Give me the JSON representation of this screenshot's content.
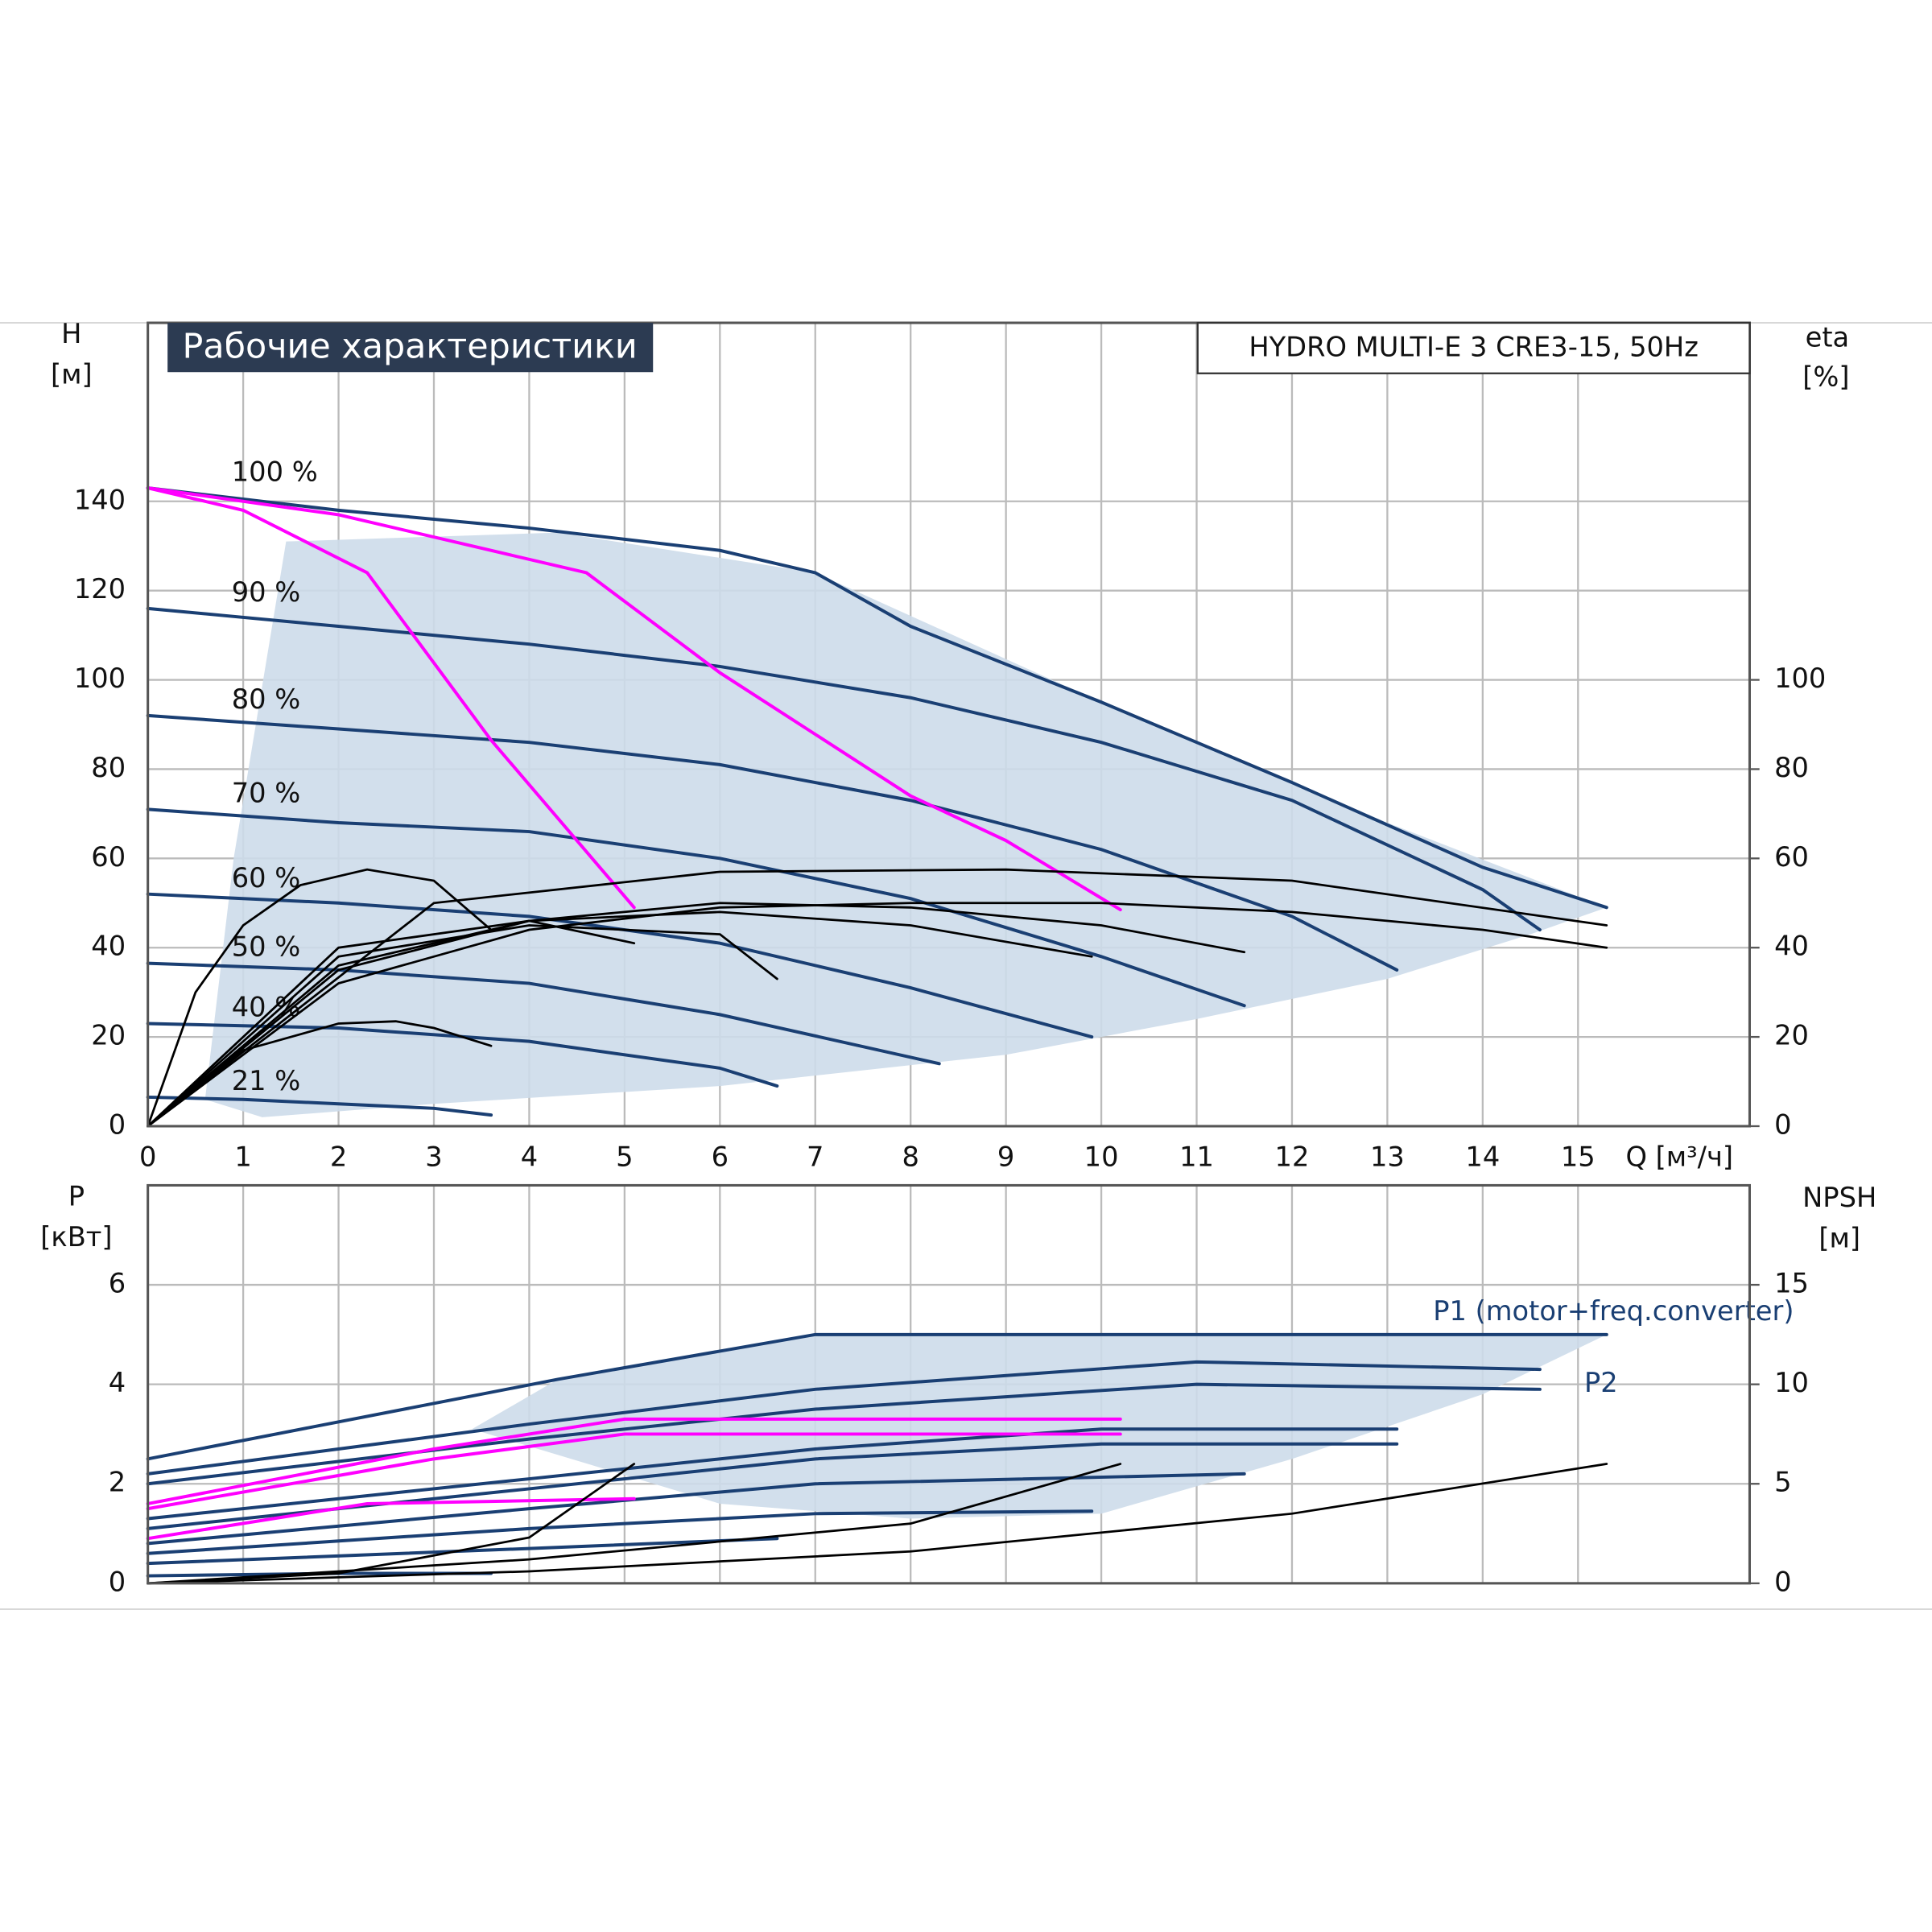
{
  "chart_data": [
    {
      "type": "line",
      "title": "Рабочие характеристики",
      "subtitle": "HYDRO MULTI-E 3 CRE3-15, 50Hz",
      "ylabel": [
        "H",
        "[м]"
      ],
      "y2label": [
        "eta",
        "[%]"
      ],
      "xlabel": "Q [м³/ч]",
      "xlim": [
        0,
        16.8
      ],
      "xticks": [
        0,
        1,
        2,
        3,
        4,
        5,
        6,
        7,
        8,
        9,
        10,
        11,
        12,
        13,
        14,
        15
      ],
      "ylim": [
        0,
        180
      ],
      "yticks": [
        0,
        20,
        40,
        60,
        80,
        100,
        120,
        140
      ],
      "y2lim": [
        0,
        180
      ],
      "y2ticks": [
        0,
        20,
        40,
        60,
        80,
        100
      ],
      "grid": true,
      "series_label_position": "start",
      "envelope": {
        "color": "#cddcea",
        "x": [
          1.45,
          4.3,
          7,
          10,
          13,
          15.3,
          14.5,
          13,
          11,
          9,
          6,
          3,
          1.2,
          0.6,
          0.9
        ],
        "values": [
          131,
          133,
          124,
          95,
          68,
          49,
          43,
          33,
          24,
          16,
          9,
          5,
          2,
          6,
          60
        ]
      },
      "series": [
        {
          "name": "100 %",
          "color": "#1a3f73",
          "x": [
            0,
            2,
            4,
            6,
            7,
            8,
            10,
            12,
            14,
            15.3
          ],
          "values": [
            143,
            138,
            134,
            129,
            124,
            112,
            95,
            77,
            58,
            49
          ]
        },
        {
          "name": "90 %",
          "color": "#1a3f73",
          "x": [
            0,
            2,
            4,
            6,
            8,
            10,
            12,
            14,
            14.6
          ],
          "values": [
            116,
            112,
            108,
            103,
            96,
            86,
            73,
            53,
            44
          ]
        },
        {
          "name": "80 %",
          "color": "#1a3f73",
          "x": [
            0,
            2,
            4,
            6,
            8,
            10,
            12,
            13.1
          ],
          "values": [
            92,
            89,
            86,
            81,
            73,
            62,
            47,
            35
          ]
        },
        {
          "name": "70 %",
          "color": "#1a3f73",
          "x": [
            0,
            2,
            4,
            6,
            8,
            10,
            11.5
          ],
          "values": [
            71,
            68,
            66,
            60,
            51,
            38,
            27
          ]
        },
        {
          "name": "60 %",
          "color": "#1a3f73",
          "x": [
            0,
            2,
            4,
            6,
            8,
            9.9
          ],
          "values": [
            52,
            50,
            47,
            41,
            31,
            20
          ]
        },
        {
          "name": "50 %",
          "color": "#1a3f73",
          "x": [
            0,
            2,
            4,
            6,
            8.3
          ],
          "values": [
            36.5,
            35,
            32,
            25,
            14
          ]
        },
        {
          "name": "40 %",
          "color": "#1a3f73",
          "x": [
            0,
            2,
            4,
            6,
            6.6
          ],
          "values": [
            23,
            22,
            19,
            13,
            9
          ]
        },
        {
          "name": "21 %",
          "color": "#1a3f73",
          "x": [
            0,
            1,
            2,
            3,
            3.6
          ],
          "values": [
            6.5,
            6,
            5,
            4,
            2.5
          ]
        },
        {
          "color": "#ff00ff",
          "x": [
            0,
            1,
            2.3,
            3.6,
            5.1
          ],
          "values": [
            143,
            138,
            124,
            86.5,
            49
          ]
        },
        {
          "color": "#ff00ff",
          "x": [
            0,
            2,
            4.6,
            6,
            8,
            9,
            10.2
          ],
          "values": [
            143,
            137,
            124,
            101.6,
            74,
            64,
            48.5
          ]
        },
        {
          "color": "#000000",
          "axis": "y2",
          "x": [
            0,
            0.5,
            1,
            1.6,
            2.3,
            3,
            3.6
          ],
          "values": [
            0,
            30,
            45,
            54,
            57.5,
            55,
            44
          ]
        },
        {
          "color": "#000000",
          "axis": "y2",
          "x": [
            0,
            1,
            2,
            2.6,
            3,
            3.6
          ],
          "values": [
            0,
            17,
            23,
            23.5,
            22,
            18
          ]
        },
        {
          "color": "#000000",
          "axis": "y2",
          "x": [
            0,
            2,
            4,
            5.1
          ],
          "values": [
            0,
            40,
            46,
            41
          ]
        },
        {
          "color": "#000000",
          "axis": "y2",
          "x": [
            0,
            2,
            4,
            6,
            6.6
          ],
          "values": [
            0,
            38,
            45,
            43,
            33
          ]
        },
        {
          "color": "#000000",
          "axis": "y2",
          "x": [
            0,
            2,
            4,
            6,
            8,
            9.9
          ],
          "values": [
            0,
            36,
            46,
            48,
            45,
            38
          ]
        },
        {
          "color": "#000000",
          "axis": "y2",
          "x": [
            0,
            2,
            4,
            6,
            8,
            10,
            11.5
          ],
          "values": [
            0,
            35,
            46,
            50,
            49,
            45,
            39
          ]
        },
        {
          "color": "#000000",
          "axis": "y2",
          "x": [
            0,
            2,
            4,
            6,
            8,
            10,
            12,
            14,
            15.3
          ],
          "values": [
            0,
            32,
            44,
            49,
            50,
            50,
            48,
            44,
            40
          ]
        },
        {
          "color": "#000000",
          "axis": "y2",
          "x": [
            0,
            3,
            6,
            9,
            12,
            15.3
          ],
          "values": [
            0,
            50,
            57,
            57.5,
            55,
            45
          ]
        }
      ]
    },
    {
      "type": "line",
      "ylabel": [
        "P",
        "[кВт]"
      ],
      "y2label": [
        "NPSH",
        "[м]"
      ],
      "xlim": [
        0,
        16.8
      ],
      "ylim": [
        0,
        8
      ],
      "yticks": [
        0,
        2,
        4,
        6
      ],
      "y2lim": [
        0,
        20
      ],
      "y2ticks": [
        0,
        5,
        10,
        15
      ],
      "grid": true,
      "series_label_position": "end",
      "envelope": {
        "color": "#cddcea",
        "x": [
          4.3,
          7,
          15.3,
          14,
          12,
          10,
          8,
          6,
          3.4
        ],
        "values": [
          4.1,
          5.0,
          5.0,
          3.8,
          2.5,
          1.4,
          1.3,
          1.6,
          3.1
        ]
      },
      "series": [
        {
          "name": "P1 (motor+freq.converter)",
          "color": "#1a3f73",
          "x": [
            0,
            4.3,
            7,
            15.3
          ],
          "values": [
            2.5,
            4.1,
            5.0,
            5.0
          ]
        },
        {
          "color": "#1a3f73",
          "x": [
            0,
            4,
            7,
            11,
            14.6
          ],
          "values": [
            2.2,
            3.2,
            3.9,
            4.45,
            4.3
          ]
        },
        {
          "name": "P2",
          "color": "#1a3f73",
          "x": [
            0,
            4,
            7,
            11,
            14.6
          ],
          "values": [
            2.0,
            2.9,
            3.5,
            4.0,
            3.9
          ]
        },
        {
          "color": "#1a3f73",
          "x": [
            0,
            4,
            7,
            10,
            13.1
          ],
          "values": [
            1.3,
            2.1,
            2.7,
            3.1,
            3.1
          ]
        },
        {
          "color": "#1a3f73",
          "x": [
            0,
            4,
            7,
            10,
            13.1
          ],
          "values": [
            1.1,
            1.9,
            2.5,
            2.8,
            2.8
          ]
        },
        {
          "color": "#1a3f73",
          "x": [
            0,
            4,
            7,
            11.5
          ],
          "values": [
            0.8,
            1.5,
            2.0,
            2.2
          ]
        },
        {
          "color": "#1a3f73",
          "x": [
            0,
            4,
            7,
            9.9
          ],
          "values": [
            0.6,
            1.1,
            1.4,
            1.45
          ]
        },
        {
          "color": "#1a3f73",
          "x": [
            0,
            4,
            6.6
          ],
          "values": [
            0.4,
            0.7,
            0.9
          ]
        },
        {
          "color": "#1a3f73",
          "x": [
            0,
            2,
            3.6
          ],
          "values": [
            0.15,
            0.2,
            0.2
          ]
        },
        {
          "color": "#ff00ff",
          "x": [
            0,
            3,
            5,
            10.2
          ],
          "values": [
            1.6,
            2.7,
            3.3,
            3.3
          ]
        },
        {
          "color": "#ff00ff",
          "x": [
            0,
            3,
            5,
            10.2
          ],
          "values": [
            1.5,
            2.5,
            3.0,
            3.0
          ]
        },
        {
          "color": "#ff00ff",
          "x": [
            0,
            2.3,
            5.1
          ],
          "values": [
            0.9,
            1.6,
            1.7
          ]
        },
        {
          "color": "#000000",
          "axis": "y2",
          "x": [
            0,
            4,
            8,
            12,
            15.3
          ],
          "values": [
            0,
            0.6,
            1.6,
            3.5,
            6.0
          ]
        },
        {
          "color": "#000000",
          "axis": "y2",
          "x": [
            0,
            4,
            8,
            10.2
          ],
          "values": [
            0,
            1.2,
            3.0,
            6.0
          ]
        },
        {
          "color": "#000000",
          "axis": "y2",
          "x": [
            0,
            2,
            4,
            5.1
          ],
          "values": [
            0,
            0.5,
            2.3,
            6.0
          ]
        }
      ]
    }
  ]
}
